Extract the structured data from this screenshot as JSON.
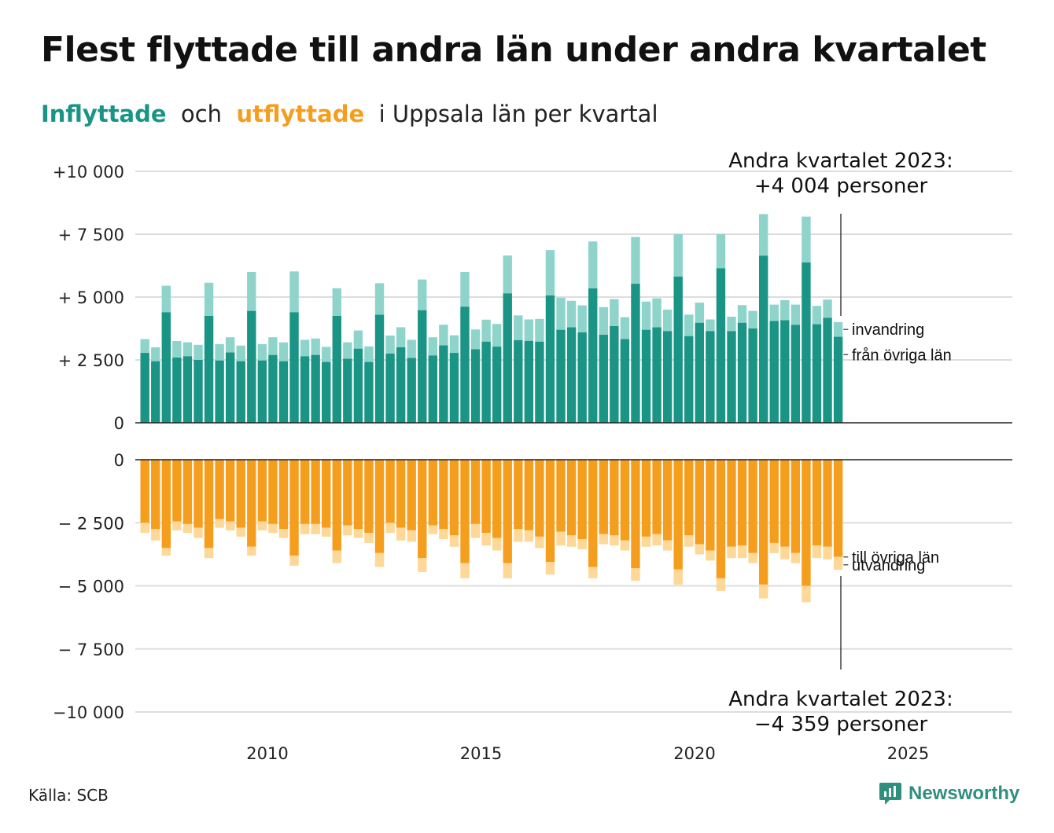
{
  "title": "Flest flyttade till andra län under andra kvartalet",
  "subtitle": {
    "in_word": "Inflyttade",
    "and": "och",
    "out_word": "utflyttade",
    "rest": "i Uppsala län per kvartal"
  },
  "source": "Källa: SCB",
  "logo_text": "Newsworthy",
  "colors": {
    "in_dark": "#1a9484",
    "in_light": "#8fd4cb",
    "out_dark": "#f59e1e",
    "out_light": "#fdd898",
    "grid": "#dddddd",
    "axis": "#222222",
    "logo": "#2f8f7e"
  },
  "chart_data": {
    "type": "bar",
    "x_ticks": [
      2010,
      2015,
      2020,
      2025
    ],
    "xlim": [
      2006.9,
      2027.6
    ],
    "top_panel": {
      "ylim": [
        0,
        10000
      ],
      "y_ticks": [
        0,
        2500,
        5000,
        7500,
        10000
      ],
      "y_tick_labels": [
        "0",
        "+ 2 500",
        "+ 5 000",
        "+ 7 500",
        "+10 000"
      ],
      "segment_labels": [
        "invandring",
        "från övriga län"
      ]
    },
    "bottom_panel": {
      "ylim": [
        -10000,
        0
      ],
      "y_ticks": [
        0,
        -2500,
        -5000,
        -7500,
        -10000
      ],
      "y_tick_labels": [
        "0",
        "− 2 500",
        "− 5 000",
        "− 7 500",
        "−10 000"
      ],
      "segment_labels": [
        "till övriga län",
        "utvandring"
      ]
    },
    "annotations": {
      "top": [
        "Andra kvartalet 2023:",
        "+4 004 personer"
      ],
      "bottom": [
        "Andra kvartalet 2023:",
        "−4 359 personer"
      ]
    },
    "categories": [
      "2007K1",
      "2007K2",
      "2007K3",
      "2007K4",
      "2008K1",
      "2008K2",
      "2008K3",
      "2008K4",
      "2009K1",
      "2009K2",
      "2009K3",
      "2009K4",
      "2010K1",
      "2010K2",
      "2010K3",
      "2010K4",
      "2011K1",
      "2011K2",
      "2011K3",
      "2011K4",
      "2012K1",
      "2012K2",
      "2012K3",
      "2012K4",
      "2013K1",
      "2013K2",
      "2013K3",
      "2013K4",
      "2014K1",
      "2014K2",
      "2014K3",
      "2014K4",
      "2015K1",
      "2015K2",
      "2015K3",
      "2015K4",
      "2016K1",
      "2016K2",
      "2016K3",
      "2016K4",
      "2017K1",
      "2017K2",
      "2017K3",
      "2017K4",
      "2018K1",
      "2018K2",
      "2018K3",
      "2018K4",
      "2019K1",
      "2019K2",
      "2019K3",
      "2019K4",
      "2020K1",
      "2020K2",
      "2020K3",
      "2020K4",
      "2021K1",
      "2021K2",
      "2021K3",
      "2021K4",
      "2022K1",
      "2022K2",
      "2022K3",
      "2022K4",
      "2023K1",
      "2023K2"
    ],
    "series": [
      {
        "name": "från övriga län",
        "values": [
          2780,
          2450,
          4400,
          2600,
          2650,
          2500,
          4250,
          2480,
          2800,
          2450,
          4450,
          2480,
          2700,
          2450,
          4400,
          2650,
          2700,
          2420,
          4250,
          2550,
          2950,
          2420,
          4300,
          2750,
          3000,
          2580,
          4480,
          2680,
          3080,
          2780,
          4620,
          2930,
          3230,
          3030,
          5150,
          3290,
          3260,
          3230,
          5070,
          3700,
          3800,
          3600,
          5350,
          3500,
          3850,
          3330,
          5530,
          3700,
          3800,
          3650,
          5820,
          3450,
          3980,
          3650,
          6150,
          3650,
          3980,
          3750,
          6650,
          4050,
          4080,
          3900,
          6380,
          3920,
          4180,
          3420
        ]
      },
      {
        "name": "invandring",
        "values": [
          550,
          550,
          1050,
          650,
          550,
          600,
          1320,
          650,
          600,
          620,
          1550,
          650,
          700,
          750,
          1620,
          650,
          650,
          600,
          1100,
          650,
          720,
          620,
          1250,
          720,
          800,
          720,
          1220,
          720,
          820,
          700,
          1380,
          780,
          870,
          900,
          1500,
          980,
          850,
          900,
          1800,
          1270,
          1050,
          1070,
          1860,
          1100,
          1070,
          870,
          1860,
          1120,
          1150,
          850,
          1680,
          850,
          800,
          460,
          1350,
          570,
          700,
          700,
          1650,
          650,
          800,
          800,
          1820,
          730,
          720,
          584
        ]
      },
      {
        "name": "till övriga län",
        "values": [
          2500,
          2750,
          3500,
          2450,
          2550,
          2700,
          3500,
          2350,
          2450,
          2700,
          3450,
          2450,
          2550,
          2750,
          3800,
          2550,
          2550,
          2700,
          3600,
          2600,
          2750,
          2900,
          3700,
          2500,
          2700,
          2800,
          3900,
          2600,
          2750,
          3000,
          4100,
          2550,
          2900,
          3100,
          4100,
          2750,
          2800,
          3050,
          4050,
          2850,
          3000,
          3150,
          4250,
          2950,
          3000,
          3200,
          4300,
          3050,
          2950,
          3200,
          4350,
          3000,
          3350,
          3600,
          4700,
          3450,
          3400,
          3700,
          4950,
          3300,
          3450,
          3700,
          5000,
          3400,
          3450,
          3850
        ]
      },
      {
        "name": "utvandring",
        "values": [
          400,
          450,
          300,
          350,
          350,
          400,
          400,
          350,
          350,
          350,
          350,
          350,
          350,
          350,
          400,
          400,
          400,
          350,
          500,
          400,
          350,
          400,
          550,
          400,
          500,
          450,
          550,
          350,
          400,
          450,
          600,
          550,
          500,
          500,
          600,
          500,
          450,
          450,
          500,
          550,
          450,
          400,
          450,
          400,
          400,
          400,
          500,
          400,
          450,
          400,
          600,
          450,
          400,
          400,
          500,
          450,
          500,
          400,
          550,
          400,
          500,
          400,
          650,
          500,
          500,
          509
        ]
      }
    ]
  }
}
